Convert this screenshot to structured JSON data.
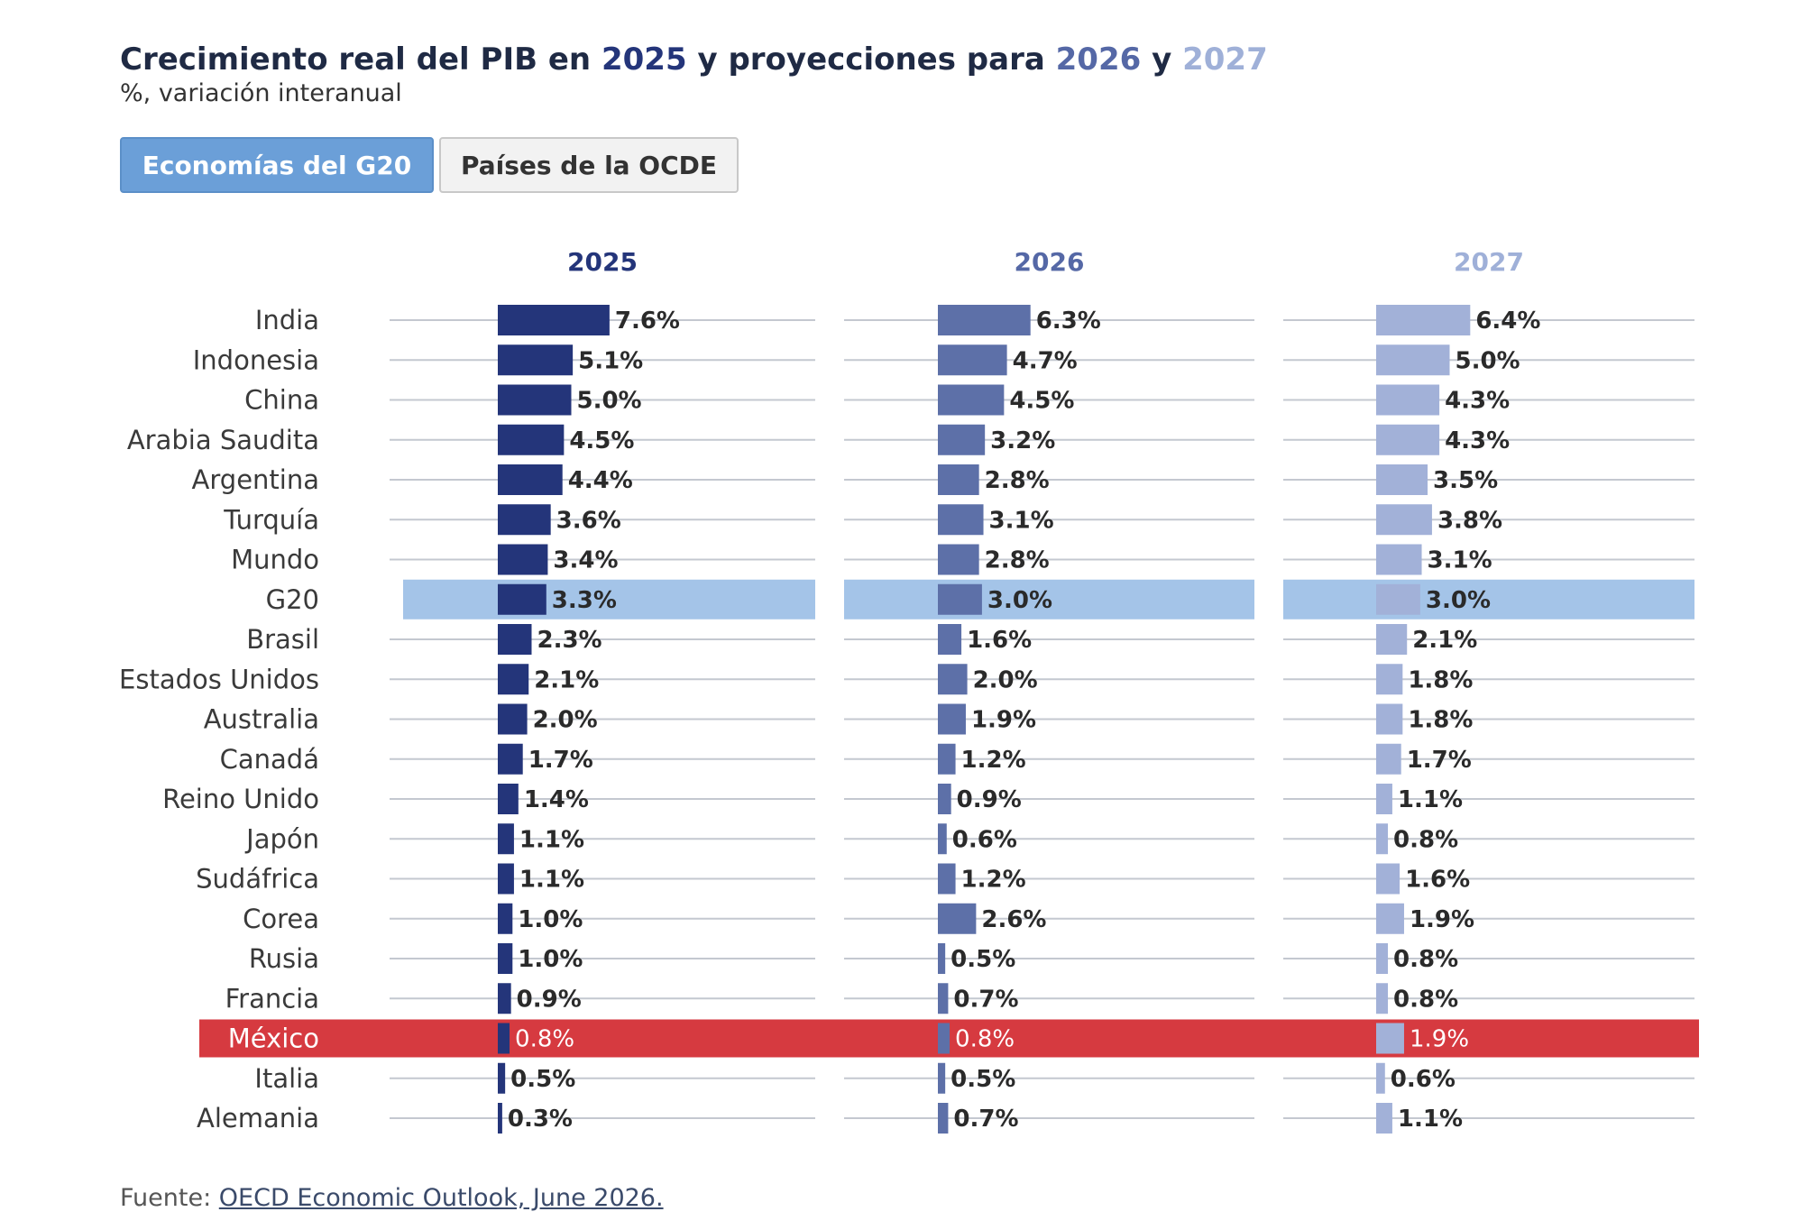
{
  "header": {
    "title_part1": "Crecimiento real del PIB en ",
    "title_year1": "2025",
    "title_part2": " y proyecciones para ",
    "title_year2": "2026",
    "title_part3": " y ",
    "title_year3": "2027",
    "subtitle": "%, variación interanual"
  },
  "tabs": [
    {
      "label": "Economías del G20",
      "active": true
    },
    {
      "label": "Países de la OCDE",
      "active": false
    }
  ],
  "footer": {
    "prefix": "Fuente: ",
    "link_text": "OECD Economic Outlook, June 2026."
  },
  "colors": {
    "series_2025": "#24357a",
    "series_2026": "#5d70a8",
    "series_2027": "#a2b1d8",
    "highlight_g20": "#a4c4e8",
    "highlight_mexico": "#d63a40"
  },
  "chart_data": {
    "type": "bar",
    "orientation": "horizontal",
    "categories": [
      "India",
      "Indonesia",
      "China",
      "Arabia Saudita",
      "Argentina",
      "Turquía",
      "Mundo",
      "G20",
      "Brasil",
      "Estados Unidos",
      "Australia",
      "Canadá",
      "Reino Unido",
      "Japón",
      "Sudáfrica",
      "Corea",
      "Rusia",
      "Francia",
      "México",
      "Italia",
      "Alemania"
    ],
    "series": [
      {
        "name": "2025",
        "values": [
          7.6,
          5.1,
          5.0,
          4.5,
          4.4,
          3.6,
          3.4,
          3.3,
          2.3,
          2.1,
          2.0,
          1.7,
          1.4,
          1.1,
          1.1,
          1.0,
          1.0,
          0.9,
          0.8,
          0.5,
          0.3
        ]
      },
      {
        "name": "2026",
        "values": [
          6.3,
          4.7,
          4.5,
          3.2,
          2.8,
          3.1,
          2.8,
          3.0,
          1.6,
          2.0,
          1.9,
          1.2,
          0.9,
          0.6,
          1.2,
          2.6,
          0.5,
          0.7,
          0.8,
          0.5,
          0.7
        ]
      },
      {
        "name": "2027",
        "values": [
          6.4,
          5.0,
          4.3,
          4.3,
          3.5,
          3.8,
          3.1,
          3.0,
          2.1,
          1.8,
          1.8,
          1.7,
          1.1,
          0.8,
          1.6,
          1.9,
          0.8,
          0.8,
          1.9,
          0.6,
          1.1
        ]
      }
    ],
    "value_suffix": "%",
    "highlight_rows": {
      "G20": "blue",
      "México": "red"
    },
    "sorted_by": "2025"
  }
}
